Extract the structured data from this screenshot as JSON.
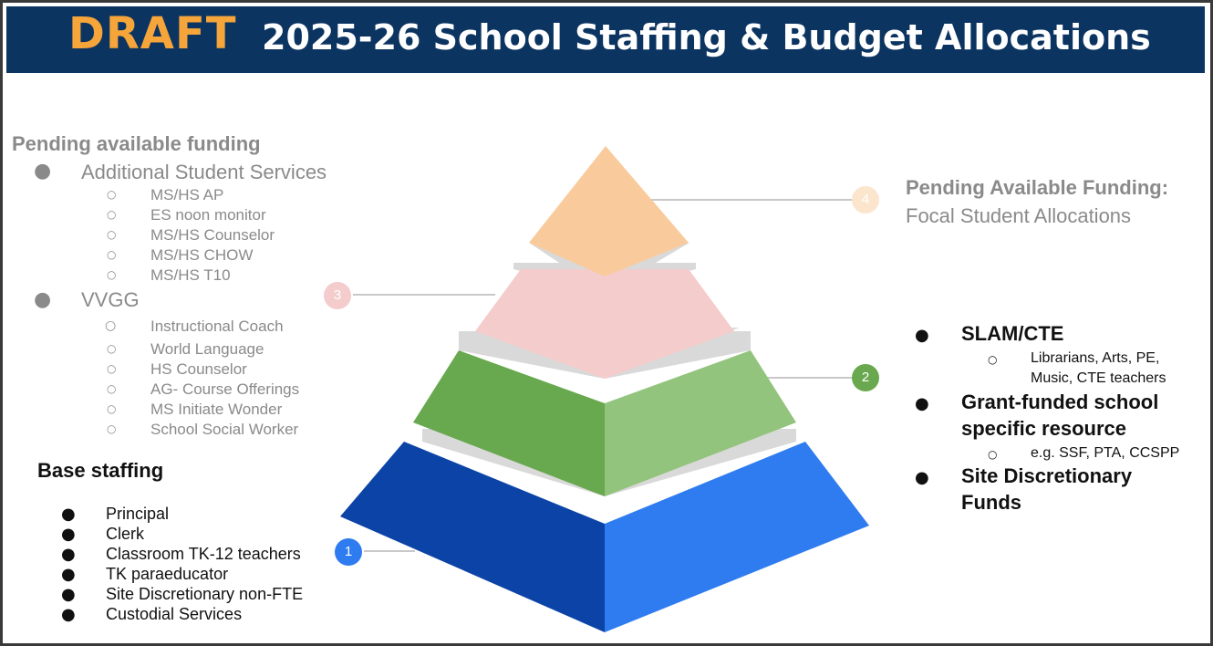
{
  "header": {
    "draft_label": "DRAFT",
    "title": "2025-26 School Staffing & Budget Allocations"
  },
  "left_pending": {
    "heading": "Pending available funding",
    "groups": [
      {
        "label": "Additional Student Services",
        "items": [
          "MS/HS AP",
          "ES noon monitor",
          "MS/HS Counselor",
          "MS/HS CHOW",
          "MS/HS T10"
        ]
      },
      {
        "label": "VVGG",
        "items": [
          "Instructional Coach",
          "World Language",
          "HS Counselor",
          "AG- Course Offerings",
          "MS Initiate Wonder",
          "School Social Worker"
        ]
      }
    ]
  },
  "base_staffing": {
    "heading": "Base staffing",
    "items": [
      "Principal",
      "Clerk",
      "Classroom TK-12 teachers",
      "TK paraeducator",
      "Site Discretionary non-FTE",
      "Custodial Services"
    ]
  },
  "right_pending": {
    "heading": "Pending Available Funding:",
    "subheading": "Focal Student Allocations"
  },
  "right_list": {
    "items": [
      {
        "label_line1": "SLAM/CTE",
        "label_line2": "",
        "sub_line1": "Librarians, Arts, PE,",
        "sub_line2": "Music, CTE teachers"
      },
      {
        "label_line1": "Grant-funded school",
        "label_line2": "specific resource",
        "sub_line1": "e.g. SSF, PTA, CCSPP",
        "sub_line2": ""
      },
      {
        "label_line1": "Site Discretionary",
        "label_line2": "Funds",
        "sub_line1": "",
        "sub_line2": ""
      }
    ]
  },
  "tiers": [
    {
      "number": "1",
      "color_left": "#0b44a6",
      "color_right": "#2f7cf0",
      "badge_color": "#2f7cf0"
    },
    {
      "number": "2",
      "color_left": "#68a84e",
      "color_right": "#93c47d",
      "badge_color": "#6aa84f"
    },
    {
      "number": "3",
      "color_left": "#f4cccc",
      "color_right": "#f4cccc",
      "badge_color": "#f4cccc"
    },
    {
      "number": "4",
      "color_left": "#f9cb9c",
      "color_right": "#f9cb9c",
      "badge_color": "#fce5cd"
    }
  ],
  "colors": {
    "banner": "#0c3461",
    "draft": "#f5a53a",
    "grey_text": "#8a8a8a",
    "tier_gap": "#d9d9d9"
  }
}
